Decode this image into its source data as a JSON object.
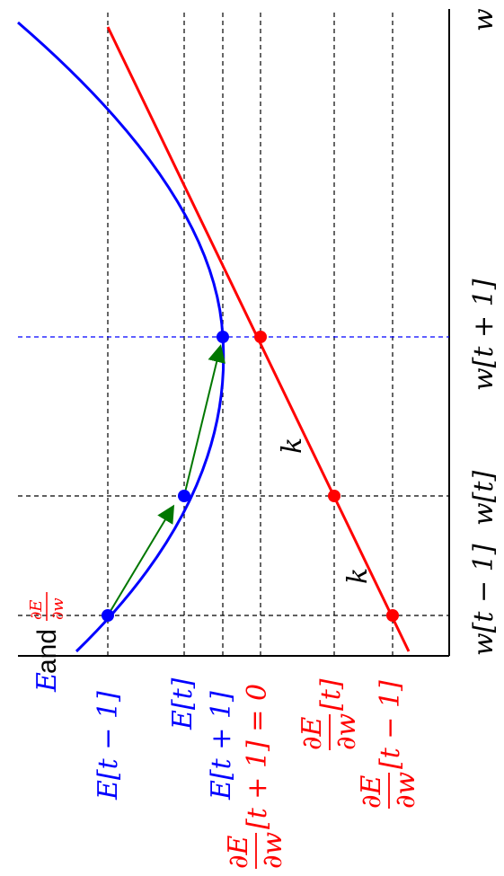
{
  "colors": {
    "blue": "#0000ff",
    "red": "#ff0000",
    "green": "#007700",
    "black": "#000000",
    "grid": "#000000"
  },
  "axis_labels": {
    "w": "w",
    "E": "E",
    "and": "and",
    "dE": "∂E",
    "dw": "∂w"
  },
  "ticks": {
    "w_tm1": "w[t − 1]",
    "w_t": "w[t]",
    "w_tp1": "w[t + 1]"
  },
  "levels": {
    "E_tm1": "E[t − 1]",
    "E_t": "E[t]",
    "E_tp1": "E[t + 1]",
    "dEdw_tp1_suffix": "[t + 1] = 0",
    "dEdw_t_suffix": "[t]",
    "dEdw_tm1_suffix": "[t − 1]",
    "frac_num": "∂E",
    "frac_den": "∂w"
  },
  "annotations": {
    "k1": "k",
    "k2": "k"
  }
}
